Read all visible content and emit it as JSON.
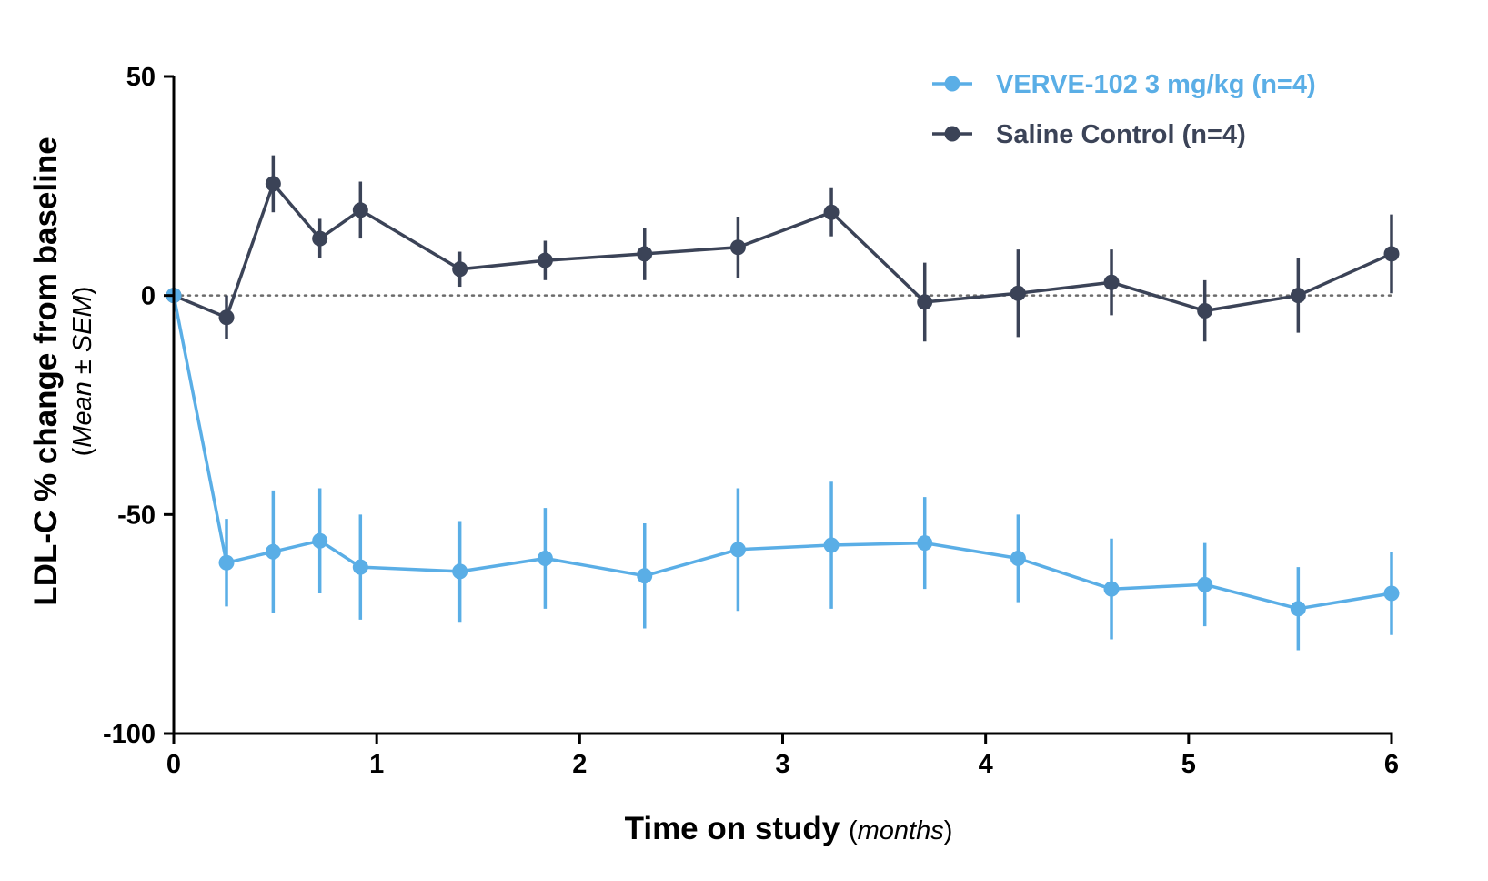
{
  "chart_data": {
    "type": "line",
    "xlabel": "Time on study",
    "xlabel_unit": "months",
    "ylabel": "LDL-C % change from baseline",
    "ylabel_sub": "Mean ± SEM",
    "xlim": [
      0,
      6
    ],
    "ylim": [
      -100,
      50
    ],
    "xticks": [
      "0",
      "1",
      "2",
      "3",
      "4",
      "5",
      "6"
    ],
    "yticks": [
      "50",
      "0",
      "-50",
      "-100"
    ],
    "reference_line": {
      "y": 0,
      "style": "dotted"
    },
    "grid": false,
    "legend_position": "top-right",
    "series": [
      {
        "name": "VERVE-102 3 mg/kg (n=4)",
        "color": "#5aaee6",
        "points": [
          {
            "x": 0,
            "y": 0,
            "err": 0
          },
          {
            "x": 0.26,
            "y": -61,
            "err": 10
          },
          {
            "x": 0.49,
            "y": -58.5,
            "err": 14
          },
          {
            "x": 0.72,
            "y": -56,
            "err": 12
          },
          {
            "x": 0.92,
            "y": -62,
            "err": 12
          },
          {
            "x": 1.41,
            "y": -63,
            "err": 11.5
          },
          {
            "x": 1.83,
            "y": -60,
            "err": 11.5
          },
          {
            "x": 2.32,
            "y": -64,
            "err": 12
          },
          {
            "x": 2.78,
            "y": -58,
            "err": 14
          },
          {
            "x": 3.24,
            "y": -57,
            "err": 14.5
          },
          {
            "x": 3.7,
            "y": -56.5,
            "err": 10.5
          },
          {
            "x": 4.16,
            "y": -60,
            "err": 10
          },
          {
            "x": 4.62,
            "y": -67,
            "err": 11.5
          },
          {
            "x": 5.08,
            "y": -66,
            "err": 9.5
          },
          {
            "x": 5.54,
            "y": -71.5,
            "err": 9.5
          },
          {
            "x": 6,
            "y": -68,
            "err": 9.5
          }
        ]
      },
      {
        "name": "Saline Control (n=4)",
        "color": "#3b4357",
        "points": [
          {
            "x": 0,
            "y": 0,
            "err": 0
          },
          {
            "x": 0.26,
            "y": -5,
            "err": 5
          },
          {
            "x": 0.49,
            "y": 25.5,
            "err": 6.5
          },
          {
            "x": 0.72,
            "y": 13,
            "err": 4.5
          },
          {
            "x": 0.92,
            "y": 19.5,
            "err": 6.5
          },
          {
            "x": 1.41,
            "y": 6,
            "err": 4
          },
          {
            "x": 1.83,
            "y": 8,
            "err": 4.5
          },
          {
            "x": 2.32,
            "y": 9.5,
            "err": 6
          },
          {
            "x": 2.78,
            "y": 11,
            "err": 7
          },
          {
            "x": 3.24,
            "y": 19,
            "err": 5.5
          },
          {
            "x": 3.7,
            "y": -1.5,
            "err": 9
          },
          {
            "x": 4.16,
            "y": 0.5,
            "err": 10
          },
          {
            "x": 4.62,
            "y": 3,
            "err": 7.5
          },
          {
            "x": 5.08,
            "y": -3.5,
            "err": 7
          },
          {
            "x": 5.54,
            "y": 0,
            "err": 8.5
          },
          {
            "x": 6,
            "y": 9.5,
            "err": 9
          }
        ]
      }
    ]
  }
}
